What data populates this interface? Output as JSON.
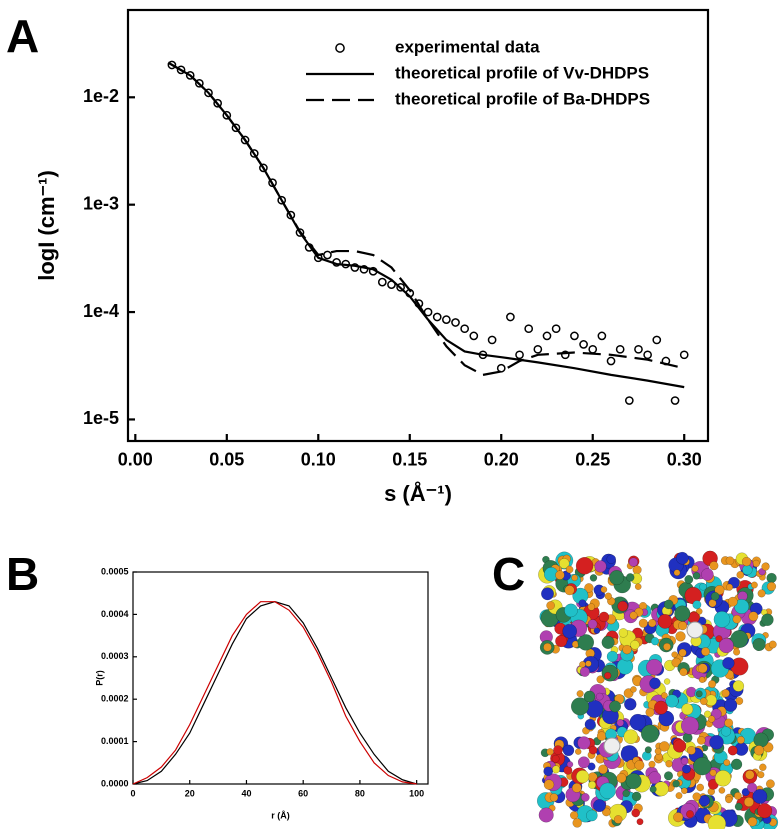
{
  "chart_data": [
    {
      "type": "line",
      "panel_label": "A",
      "xlabel": "s (Å⁻¹)",
      "ylabel": "logI (cm⁻¹)",
      "xlim": [
        -0.004,
        0.313
      ],
      "ylim": [
        6.3e-06,
        0.065
      ],
      "yscale": "log",
      "xticks": [
        {
          "value": 0,
          "label": "0.00"
        },
        0.05,
        {
          "value": 0.1,
          "label": "0.10"
        },
        0.15,
        {
          "value": 0.2,
          "label": "0.20"
        },
        0.25,
        {
          "value": 0.3,
          "label": "0.30"
        }
      ],
      "yticks": [
        {
          "value": 1e-05,
          "label": "1e-5"
        },
        {
          "value": 0.0001,
          "label": "1e-4"
        },
        {
          "value": 0.001,
          "label": "1e-3"
        },
        {
          "value": 0.01,
          "label": "1e-2"
        }
      ],
      "legend": "upper right",
      "series": [
        {
          "name": "experimental data",
          "color": "#000000",
          "style": "markers",
          "x": [
            0.02,
            0.025,
            0.03,
            0.035,
            0.04,
            0.045,
            0.05,
            0.055,
            0.06,
            0.065,
            0.07,
            0.075,
            0.08,
            0.085,
            0.09,
            0.095,
            0.1,
            0.105,
            0.11,
            0.115,
            0.12,
            0.125,
            0.13,
            0.135,
            0.14,
            0.145,
            0.15,
            0.155,
            0.16,
            0.165,
            0.17,
            0.175,
            0.18,
            0.185,
            0.19,
            0.195,
            0.2,
            0.205,
            0.21,
            0.215,
            0.22,
            0.225,
            0.23,
            0.235,
            0.24,
            0.245,
            0.25,
            0.255,
            0.26,
            0.265,
            0.27,
            0.275,
            0.28,
            0.285,
            0.29,
            0.295,
            0.3
          ],
          "values": [
            0.02,
            0.018,
            0.016,
            0.0135,
            0.011,
            0.0088,
            0.0068,
            0.0052,
            0.004,
            0.003,
            0.0022,
            0.0016,
            0.0011,
            0.0008,
            0.00055,
            0.0004,
            0.00032,
            0.00034,
            0.00029,
            0.00028,
            0.00026,
            0.00025,
            0.00024,
            0.00019,
            0.00018,
            0.00017,
            0.00015,
            0.00012,
            0.0001,
            9e-05,
            8.5e-05,
            8e-05,
            7e-05,
            6e-05,
            4e-05,
            5.5e-05,
            3e-05,
            9e-05,
            4e-05,
            7e-05,
            4.5e-05,
            6e-05,
            7e-05,
            4e-05,
            6e-05,
            5e-05,
            4.5e-05,
            6e-05,
            3.5e-05,
            4.5e-05,
            1.5e-05,
            4.5e-05,
            4e-05,
            5.5e-05,
            3.5e-05,
            1.5e-05,
            4e-05
          ]
        },
        {
          "name": "theoretical profile of Vv-DHDPS",
          "color": "#000000",
          "style": "solid",
          "x": [
            0.018,
            0.03,
            0.04,
            0.05,
            0.06,
            0.07,
            0.08,
            0.09,
            0.1,
            0.11,
            0.12,
            0.13,
            0.14,
            0.15,
            0.16,
            0.17,
            0.18,
            0.19,
            0.2,
            0.22,
            0.24,
            0.26,
            0.28,
            0.3
          ],
          "values": [
            0.021,
            0.016,
            0.011,
            0.0068,
            0.004,
            0.0022,
            0.0011,
            0.00055,
            0.00032,
            0.00028,
            0.00027,
            0.00025,
            0.0002,
            0.00014,
            8.5e-05,
            5.5e-05,
            4.3e-05,
            4e-05,
            3.8e-05,
            3.4e-05,
            3e-05,
            2.6e-05,
            2.3e-05,
            2e-05
          ]
        },
        {
          "name": "theoretical profile of Ba-DHDPS",
          "color": "#000000",
          "style": "dashed",
          "x": [
            0.018,
            0.03,
            0.04,
            0.05,
            0.06,
            0.07,
            0.08,
            0.09,
            0.1,
            0.11,
            0.12,
            0.13,
            0.14,
            0.15,
            0.16,
            0.17,
            0.18,
            0.19,
            0.2,
            0.21,
            0.22,
            0.24,
            0.26,
            0.28,
            0.3
          ],
          "values": [
            0.021,
            0.016,
            0.011,
            0.0068,
            0.004,
            0.0022,
            0.0011,
            0.00056,
            0.00034,
            0.00037,
            0.00037,
            0.00034,
            0.00026,
            0.00016,
            8.5e-05,
            4.8e-05,
            3.2e-05,
            2.6e-05,
            2.8e-05,
            3.5e-05,
            4e-05,
            4.2e-05,
            4e-05,
            3.6e-05,
            3e-05
          ]
        }
      ]
    },
    {
      "type": "line",
      "panel_label": "B",
      "xlabel": "r (Å)",
      "ylabel": "P(r)",
      "xlim": [
        0,
        104
      ],
      "ylim": [
        0,
        0.0005
      ],
      "xticks": [
        0,
        20,
        40,
        60,
        80,
        100
      ],
      "yticks": [
        {
          "value": 0,
          "label": "0.0000"
        },
        {
          "value": 0.0001,
          "label": "0.0001"
        },
        {
          "value": 0.0002,
          "label": "0.0002"
        },
        {
          "value": 0.0003,
          "label": "0.0003"
        },
        {
          "value": 0.0004,
          "label": "0.0004"
        },
        {
          "value": 0.0005,
          "label": "0.0005"
        }
      ],
      "series": [
        {
          "color": "#000000",
          "style": "solid",
          "x": [
            0,
            5,
            10,
            15,
            20,
            25,
            30,
            35,
            40,
            45,
            50,
            55,
            60,
            65,
            70,
            75,
            80,
            85,
            90,
            95,
            100
          ],
          "values": [
            0,
            8e-06,
            3e-05,
            7e-05,
            0.00012,
            0.00019,
            0.00026,
            0.00033,
            0.00039,
            0.00042,
            0.00043,
            0.00042,
            0.00038,
            0.00032,
            0.00025,
            0.00018,
            0.00012,
            7e-05,
            3e-05,
            1e-05,
            0
          ]
        },
        {
          "color": "#cc0000",
          "style": "solid",
          "x": [
            0,
            5,
            10,
            15,
            20,
            25,
            30,
            35,
            40,
            45,
            50,
            55,
            60,
            65,
            70,
            75,
            80,
            85,
            90,
            95,
            100
          ],
          "values": [
            0,
            1.5e-05,
            4e-05,
            8e-05,
            0.00014,
            0.00021,
            0.00028,
            0.00035,
            0.0004,
            0.00043,
            0.00043,
            0.00041,
            0.00037,
            0.00031,
            0.00024,
            0.00016,
            0.0001,
            5e-05,
            2e-05,
            5e-06,
            0
          ]
        }
      ]
    }
  ],
  "panel_c": {
    "panel_label": "C"
  }
}
